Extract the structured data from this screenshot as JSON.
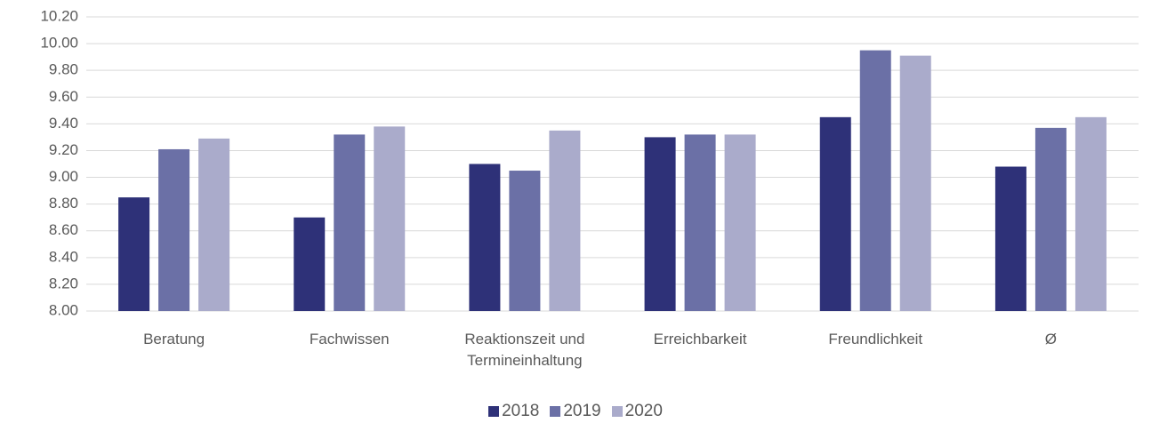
{
  "chart_data": {
    "type": "bar",
    "categories": [
      "Beratung",
      "Fachwissen",
      "Reaktionszeit und Termineinhaltung",
      "Erreichbarkeit",
      "Freundlichkeit",
      "Ø"
    ],
    "series": [
      {
        "name": "2018",
        "color": "#2e3178",
        "values": [
          8.85,
          8.7,
          9.1,
          9.3,
          9.45,
          9.08
        ]
      },
      {
        "name": "2019",
        "color": "#6b70a6",
        "values": [
          9.21,
          9.32,
          9.05,
          9.32,
          9.95,
          9.37
        ]
      },
      {
        "name": "2020",
        "color": "#aaabcb",
        "values": [
          9.29,
          9.38,
          9.35,
          9.32,
          9.91,
          9.45
        ]
      }
    ],
    "ylim": [
      8.0,
      10.2
    ],
    "yticks": [
      {
        "value": 8.0,
        "label": "8.00"
      },
      {
        "value": 8.2,
        "label": "8.20"
      },
      {
        "value": 8.4,
        "label": "8.40"
      },
      {
        "value": 8.6,
        "label": "8.60"
      },
      {
        "value": 8.8,
        "label": "8.80"
      },
      {
        "value": 9.0,
        "label": "9.00"
      },
      {
        "value": 9.2,
        "label": "9.20"
      },
      {
        "value": 9.4,
        "label": "9.40"
      },
      {
        "value": 9.6,
        "label": "9.60"
      },
      {
        "value": 9.8,
        "label": "9.80"
      },
      {
        "value": 10.0,
        "label": "10.00"
      },
      {
        "value": 10.2,
        "label": "10.20"
      }
    ],
    "grid": true,
    "legend": "bottom"
  }
}
